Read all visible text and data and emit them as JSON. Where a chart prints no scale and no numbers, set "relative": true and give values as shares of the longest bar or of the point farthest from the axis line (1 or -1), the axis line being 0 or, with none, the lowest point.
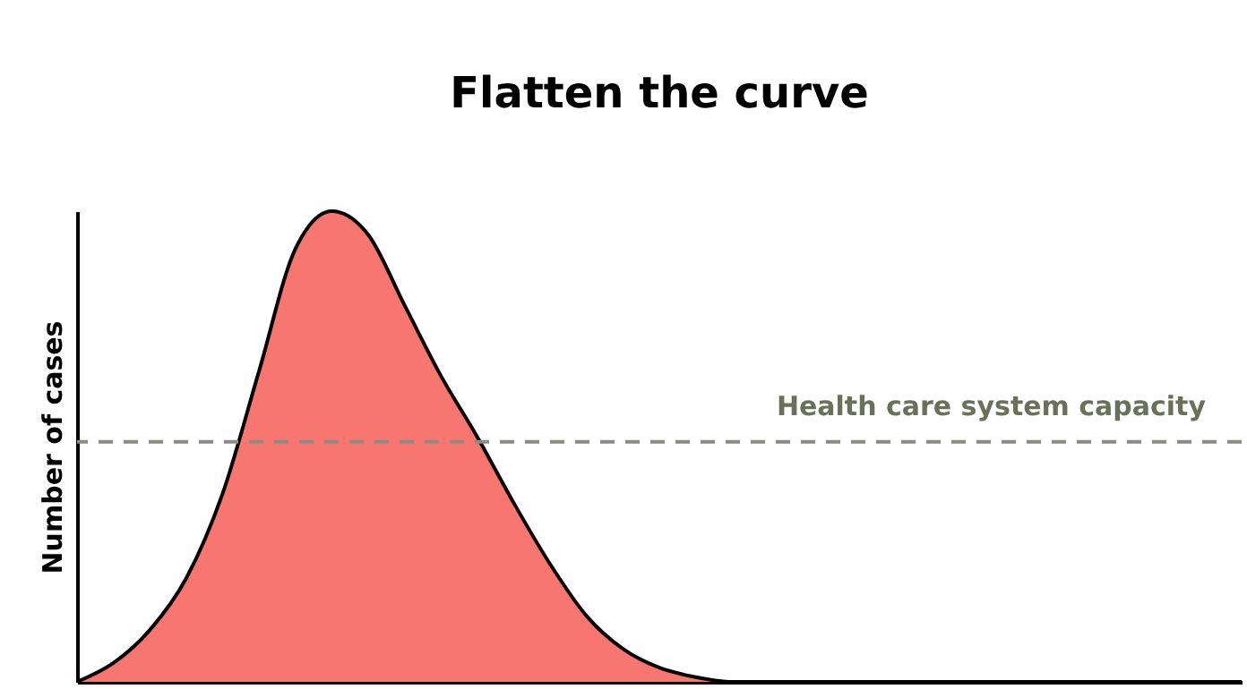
{
  "chart_data": {
    "type": "area",
    "title": "Flatten the curve",
    "ylabel": "Number of cases",
    "relative": true,
    "color": "#f87670",
    "categories": [
      null,
      null,
      null,
      null,
      null,
      null,
      null,
      null,
      null,
      null,
      null,
      null,
      null,
      null,
      null,
      null,
      null,
      null,
      null,
      null,
      null,
      null,
      null,
      null,
      null,
      null,
      null,
      null,
      null,
      null,
      null,
      null,
      null
    ],
    "values": [
      0,
      0.04,
      0.11,
      0.22,
      0.4,
      0.66,
      0.92,
      1.0,
      0.95,
      0.8,
      0.65,
      0.52,
      0.38,
      0.25,
      0.14,
      0.07,
      0.03,
      0.01,
      0,
      0,
      0,
      0,
      0,
      0,
      0,
      0,
      0,
      0,
      0,
      0,
      0,
      0,
      0
    ],
    "ref_lines": [
      {
        "axis": "y",
        "value": 0.51,
        "label": "Health care system capacity",
        "color": "#8c8c84",
        "line_style": "dashed"
      }
    ],
    "grid": false
  }
}
